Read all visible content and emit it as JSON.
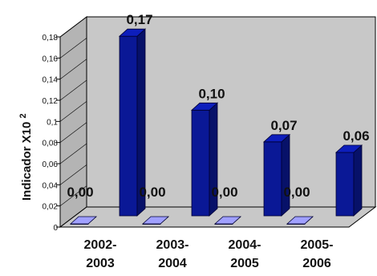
{
  "chart_data": {
    "type": "bar",
    "title": "",
    "ylabel": "Indicador X10",
    "ylabel_superscript": "2",
    "xlabel": "",
    "categories": [
      [
        "2002-",
        "2003"
      ],
      [
        "2003-",
        "2004"
      ],
      [
        "2004-",
        "2005"
      ],
      [
        "2005-",
        "2006"
      ]
    ],
    "series": [
      {
        "values": [
          0.0,
          0.0,
          0.0,
          0.0
        ],
        "labels": [
          "0,00",
          "0,00",
          "0,00",
          "0,00"
        ],
        "color": "#8080d0"
      },
      {
        "values": [
          0.17,
          0.1,
          0.07,
          0.06
        ],
        "labels": [
          "0,17",
          "0,10",
          "0,07",
          "0,06"
        ],
        "color": "#0a1896"
      }
    ],
    "yticks": [
      "0",
      "0,02",
      "0,04",
      "0,06",
      "0,08",
      "0,1",
      "0,12",
      "0,14",
      "0,16",
      "0,18"
    ],
    "ylim": [
      0,
      0.18
    ],
    "chart_style": "3d-column",
    "grid": false,
    "legend": "none"
  },
  "colors": {
    "wall_back": "#c8c8c8",
    "wall_side": "#b4b4b4",
    "floor": "#c8c8c8",
    "axis": "#000000"
  }
}
